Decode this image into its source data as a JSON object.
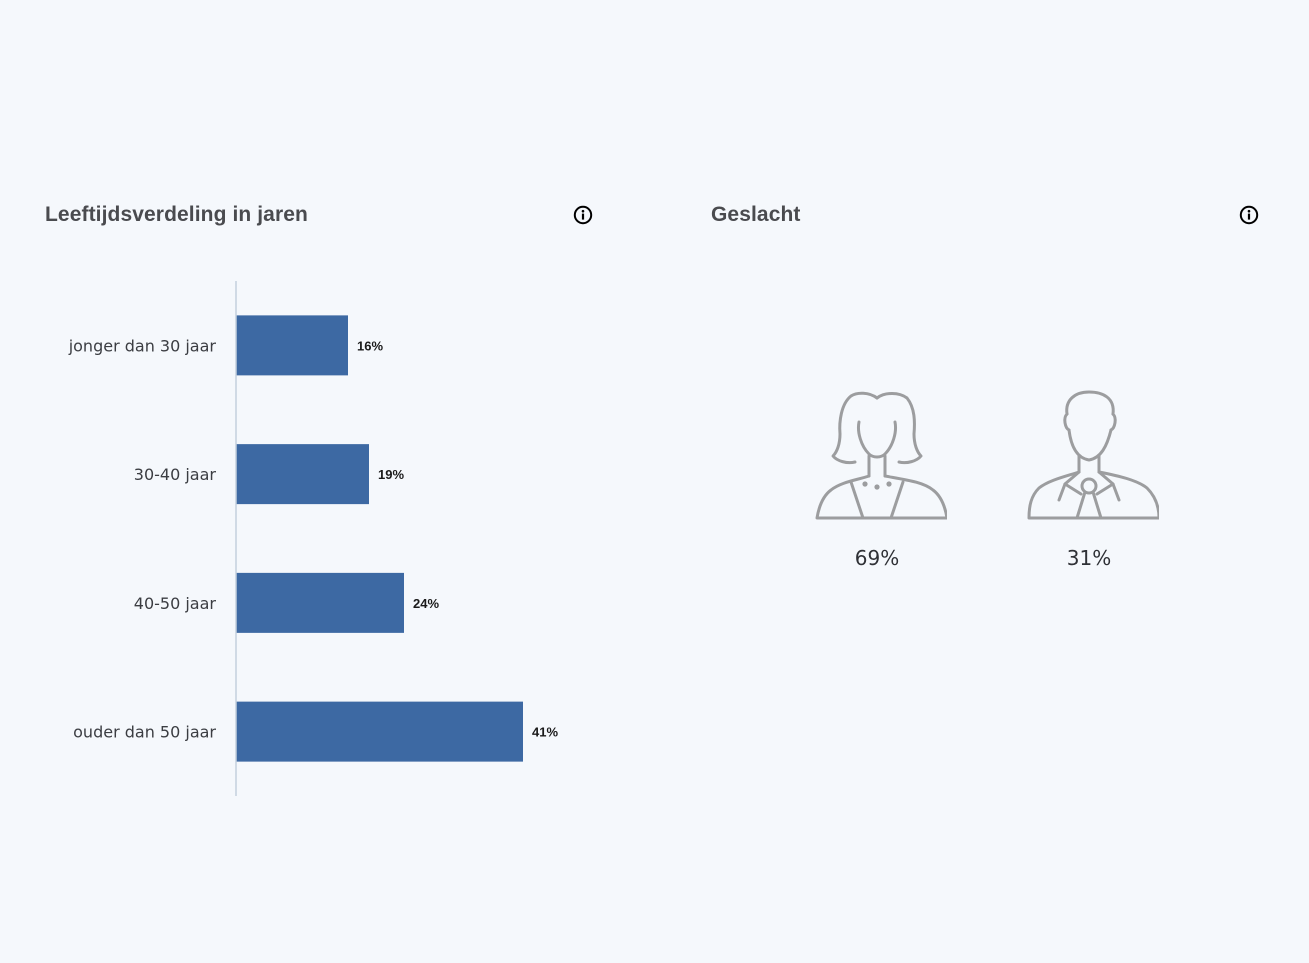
{
  "age_panel": {
    "title": "Leeftijdsverdeling in jaren",
    "info_icon": "info-circle-icon"
  },
  "gender_panel": {
    "title": "Geslacht",
    "info_icon": "info-circle-icon",
    "items": [
      {
        "icon": "female-person-icon",
        "value": "69%"
      },
      {
        "icon": "male-person-icon",
        "value": "31%"
      }
    ]
  },
  "colors": {
    "bar": "#3d69a3",
    "background": "#f5f8fc",
    "axis": "#c4cfdd",
    "icon_stroke": "#9c9d9f"
  },
  "chart_data": [
    {
      "type": "bar",
      "orientation": "horizontal",
      "title": "Leeftijdsverdeling in jaren",
      "categories": [
        "jonger dan 30 jaar",
        "30-40 jaar",
        "40-50 jaar",
        "ouder dan 50 jaar"
      ],
      "values": [
        16,
        19,
        24,
        41
      ],
      "value_labels": [
        "16%",
        "19%",
        "24%",
        "41%"
      ],
      "unit": "%",
      "xlim": [
        0,
        50
      ],
      "grid": false,
      "legend": "none"
    },
    {
      "type": "table",
      "title": "Geslacht",
      "categories": [
        "female",
        "male"
      ],
      "values": [
        69,
        31
      ],
      "unit": "%"
    }
  ]
}
